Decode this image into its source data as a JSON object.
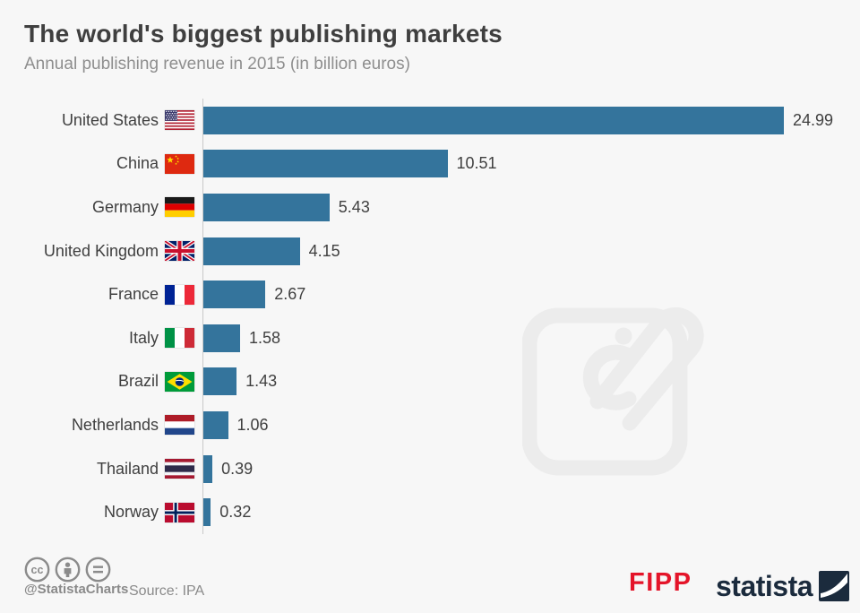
{
  "header": {
    "title": "The world's biggest publishing markets",
    "subtitle": "Annual publishing revenue in 2015 (in billion euros)"
  },
  "chart_data": {
    "type": "bar",
    "orientation": "horizontal",
    "title": "The world's biggest publishing markets",
    "subtitle": "Annual publishing revenue in 2015 (in billion euros)",
    "categories": [
      "United States",
      "China",
      "Germany",
      "United Kingdom",
      "France",
      "Italy",
      "Brazil",
      "Netherlands",
      "Thailand",
      "Norway"
    ],
    "values": [
      24.99,
      10.51,
      5.43,
      4.15,
      2.67,
      1.58,
      1.43,
      1.06,
      0.39,
      0.32
    ],
    "value_labels": [
      "24.99",
      "10.51",
      "5.43",
      "4.15",
      "2.67",
      "1.58",
      "1.43",
      "1.06",
      "0.39",
      "0.32"
    ],
    "flags": [
      "us",
      "cn",
      "de",
      "gb",
      "fr",
      "it",
      "br",
      "nl",
      "th",
      "no"
    ],
    "xlim": [
      0,
      25
    ],
    "grid": false,
    "legend": false
  },
  "footer": {
    "cc_icons": [
      "cc-icon",
      "attribution-icon",
      "equals-icon"
    ],
    "handle": "@StatistaCharts",
    "source": "Source: IPA",
    "fipp_logo": "FIPP",
    "statista_logo": "statista"
  },
  "colors": {
    "background": "#f7f7f7",
    "bar": "#34749c",
    "axis_line": "#c9c9c9",
    "title_text": "#3f3f3f",
    "subtitle_text": "#8e8e8e",
    "footer_gray": "#8a8a8a",
    "fipp_red": "#e41429",
    "statista_navy": "#1b2b3d",
    "watermark": "#ececec"
  }
}
